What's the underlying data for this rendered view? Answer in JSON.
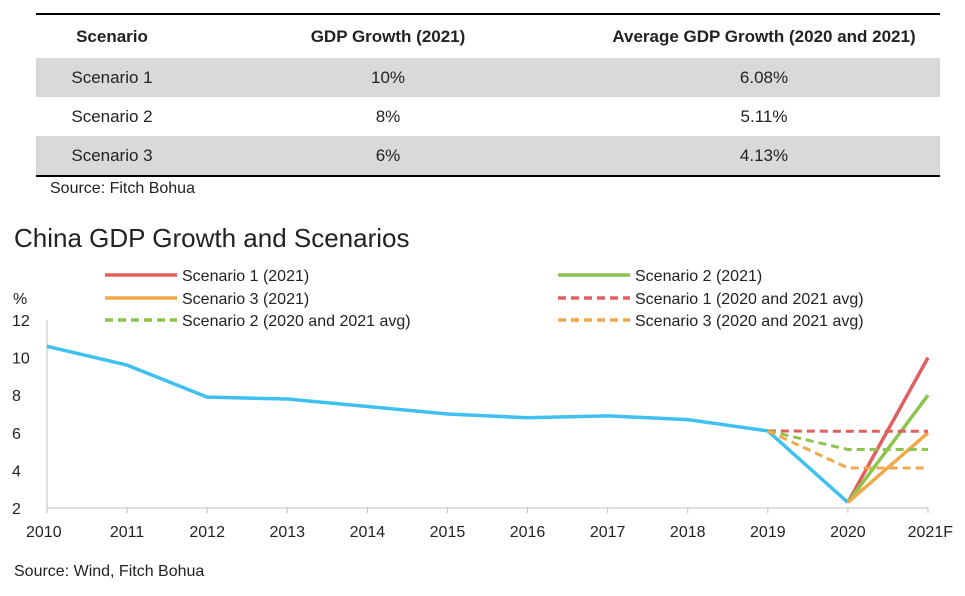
{
  "table": {
    "headers": [
      "Scenario",
      "GDP Growth (2021)",
      "Average GDP Growth (2020 and 2021)"
    ],
    "rows": [
      [
        "Scenario 1",
        "10%",
        "6.08%"
      ],
      [
        "Scenario 2",
        "8%",
        "5.11%"
      ],
      [
        "Scenario 3",
        "6%",
        "4.13%"
      ]
    ],
    "source": "Source: Fitch Bohua"
  },
  "chart_data": {
    "type": "line",
    "title": "China GDP Growth and Scenarios",
    "ylabel": "%",
    "xlabel": "",
    "categories": [
      "2010",
      "2011",
      "2012",
      "2013",
      "2014",
      "2015",
      "2016",
      "2017",
      "2018",
      "2019",
      "2020",
      "2021F"
    ],
    "ylim": [
      2,
      12
    ],
    "yticks": [
      2,
      4,
      6,
      8,
      10,
      12
    ],
    "grid": false,
    "legend_position": "top",
    "series": [
      {
        "name": "",
        "color": "#3ec1f0",
        "dash": false,
        "values": [
          10.6,
          9.6,
          7.9,
          7.8,
          7.4,
          7.0,
          6.8,
          6.9,
          6.7,
          6.1,
          2.3,
          null
        ]
      },
      {
        "name": "Scenario 1 (2021)",
        "color": "#e06060",
        "dash": false,
        "values": [
          null,
          null,
          null,
          null,
          null,
          null,
          null,
          null,
          null,
          null,
          2.3,
          10
        ]
      },
      {
        "name": "Scenario 2 (2021)",
        "color": "#8cc44e",
        "dash": false,
        "values": [
          null,
          null,
          null,
          null,
          null,
          null,
          null,
          null,
          null,
          null,
          2.3,
          8
        ]
      },
      {
        "name": "Scenario 3 (2021)",
        "color": "#f0a84a",
        "dash": false,
        "values": [
          null,
          null,
          null,
          null,
          null,
          null,
          null,
          null,
          null,
          null,
          2.3,
          6
        ]
      },
      {
        "name": "Scenario 1 (2020 and 2021 avg)",
        "color": "#e06060",
        "dash": true,
        "values": [
          null,
          null,
          null,
          null,
          null,
          null,
          null,
          null,
          null,
          6.1,
          6.08,
          6.08
        ]
      },
      {
        "name": "Scenario 2 (2020 and 2021 avg)",
        "color": "#8cc44e",
        "dash": true,
        "values": [
          null,
          null,
          null,
          null,
          null,
          null,
          null,
          null,
          null,
          6.1,
          5.11,
          5.11
        ]
      },
      {
        "name": "Scenario 3 (2020 and 2021 avg)",
        "color": "#f0a84a",
        "dash": true,
        "values": [
          null,
          null,
          null,
          null,
          null,
          null,
          null,
          null,
          null,
          6.1,
          4.13,
          4.13
        ]
      }
    ],
    "source": "Source: Wind, Fitch Bohua"
  }
}
